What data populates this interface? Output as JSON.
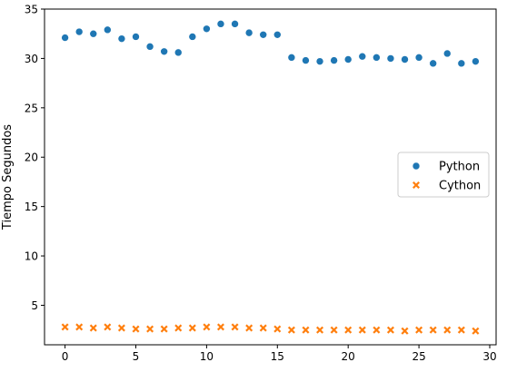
{
  "chart_data": {
    "type": "scatter",
    "title": "",
    "xlabel": "",
    "ylabel": "Tiempo Segundos",
    "xlim": [
      -1.45,
      30.45
    ],
    "ylim": [
      1.0,
      35.0
    ],
    "xticks": [
      0,
      5,
      10,
      15,
      20,
      25,
      30
    ],
    "yticks": [
      5,
      10,
      15,
      20,
      25,
      30,
      35
    ],
    "grid": false,
    "legend_position": "center-right",
    "x": [
      0,
      1,
      2,
      3,
      4,
      5,
      6,
      7,
      8,
      9,
      10,
      11,
      12,
      13,
      14,
      15,
      16,
      17,
      18,
      19,
      20,
      21,
      22,
      23,
      24,
      25,
      26,
      27,
      28,
      29
    ],
    "series": [
      {
        "name": "Python",
        "marker": "circle",
        "color": "#1f77b4",
        "values": [
          32.1,
          32.7,
          32.5,
          32.9,
          32.0,
          32.2,
          31.2,
          30.7,
          30.6,
          32.2,
          33.0,
          33.5,
          33.5,
          32.6,
          32.4,
          32.4,
          30.1,
          29.8,
          29.7,
          29.8,
          29.9,
          30.2,
          30.1,
          30.0,
          29.9,
          30.1,
          29.5,
          30.5,
          29.5,
          29.7
        ]
      },
      {
        "name": "Cython",
        "marker": "x",
        "color": "#ff7f0e",
        "values": [
          2.8,
          2.8,
          2.7,
          2.8,
          2.7,
          2.6,
          2.6,
          2.6,
          2.7,
          2.7,
          2.8,
          2.8,
          2.8,
          2.7,
          2.7,
          2.6,
          2.5,
          2.5,
          2.5,
          2.5,
          2.5,
          2.5,
          2.5,
          2.5,
          2.4,
          2.5,
          2.5,
          2.5,
          2.5,
          2.4
        ]
      }
    ]
  }
}
